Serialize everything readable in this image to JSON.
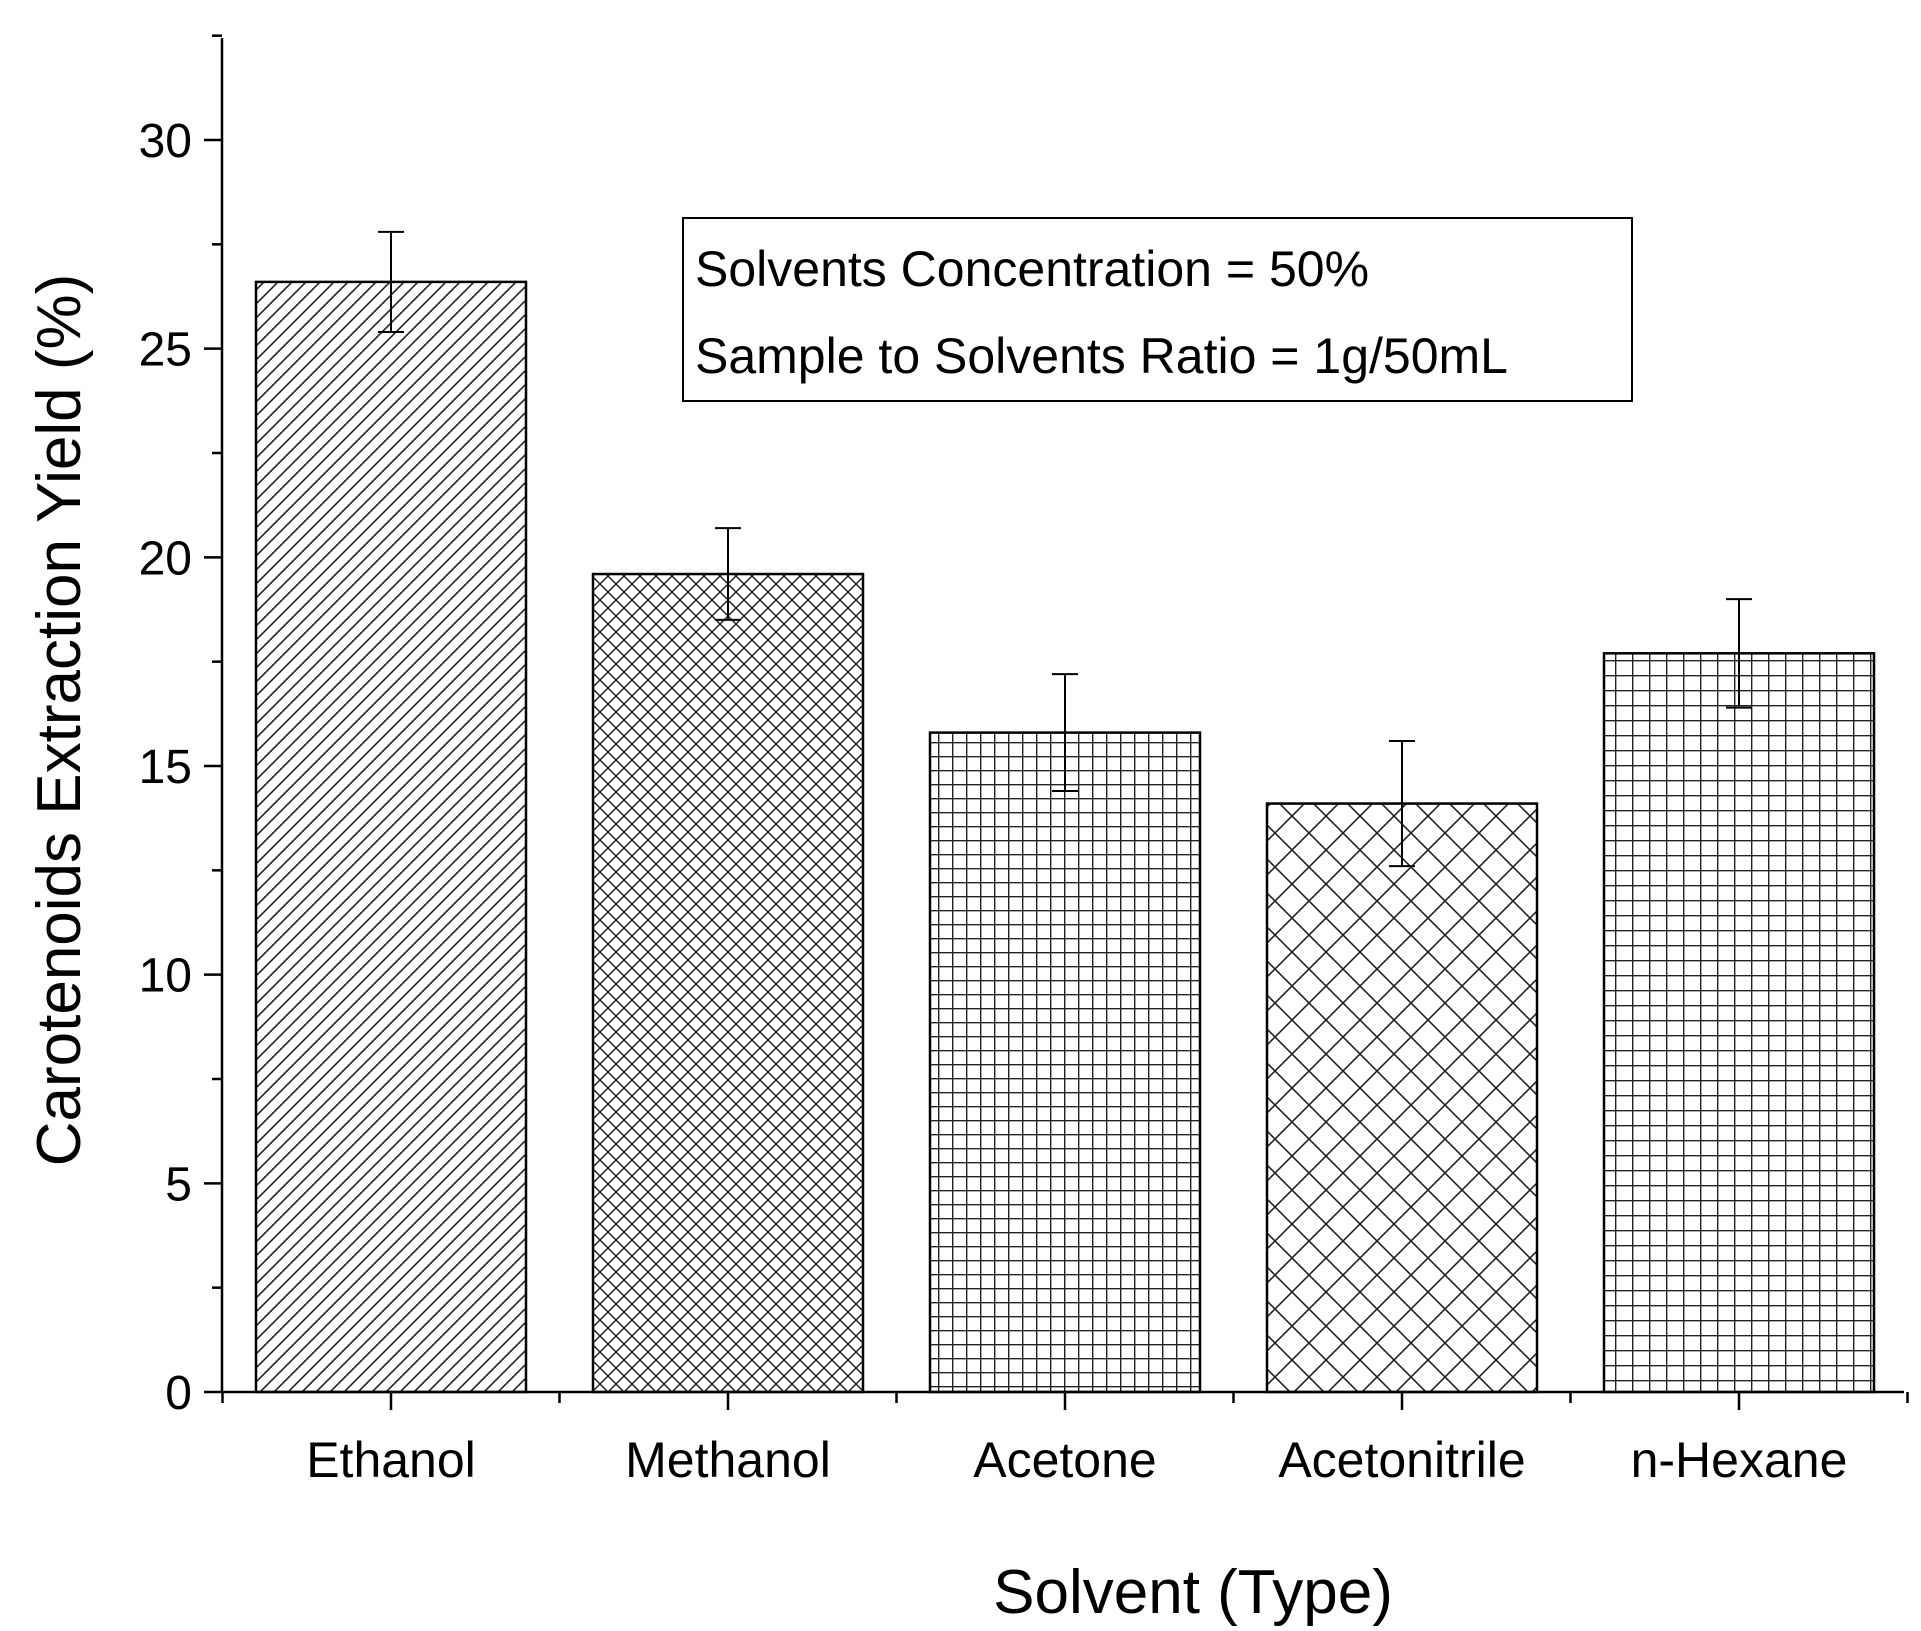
{
  "chart_data": {
    "type": "bar",
    "title": "",
    "xlabel": "Solvent (Type)",
    "ylabel": "Carotenoids Extraction Yield (%)",
    "categories": [
      "Ethanol",
      "Methanol",
      "Acetone",
      "Acetonitrile",
      "n-Hexane"
    ],
    "values": [
      26.6,
      19.6,
      15.8,
      14.1,
      17.7
    ],
    "errors": [
      1.2,
      1.1,
      1.4,
      1.5,
      1.3
    ],
    "patterns": [
      "diagonal",
      "fine-crosshatch",
      "grid",
      "diamond",
      "grid-wide"
    ],
    "ylim": [
      0,
      32.5
    ],
    "yticks": [
      0,
      5,
      10,
      15,
      20,
      25,
      30
    ],
    "grid": false,
    "annotation": [
      "Solvents Concentration = 50%",
      "Sample to Solvents Ratio = 1g/50mL"
    ]
  }
}
